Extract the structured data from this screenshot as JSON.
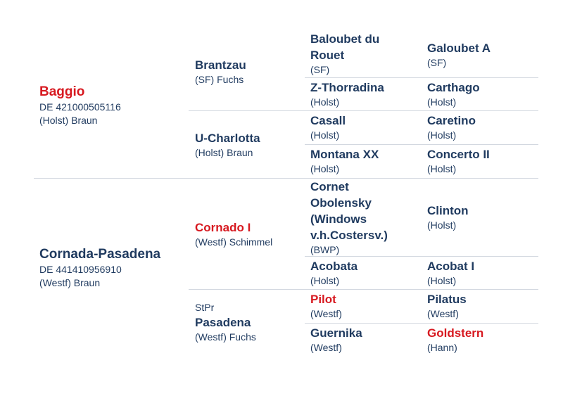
{
  "horse": {
    "sire": {
      "name": "Baggio",
      "reg": "DE 421000505116",
      "info": "(Holst) Braun",
      "highlight": true
    },
    "dam": {
      "name": "Cornada-Pasadena",
      "reg": "DE 441410956910",
      "info": "(Westf) Braun",
      "highlight": false
    }
  },
  "grandparents": [
    {
      "name": "Brantzau",
      "info": "(SF) Fuchs",
      "prefix": "",
      "highlight": false
    },
    {
      "name": "U-Charlotta",
      "info": "(Holst) Braun",
      "prefix": "",
      "highlight": false
    },
    {
      "name": "Cornado I",
      "info": "(Westf) Schimmel",
      "prefix": "",
      "highlight": true
    },
    {
      "name": "Pasadena",
      "info": "(Westf) Fuchs",
      "prefix": "StPr",
      "highlight": false
    }
  ],
  "great_grandparents": [
    {
      "name_lines": [
        "Baloubet du",
        "Rouet"
      ],
      "info": "(SF)",
      "highlight": false
    },
    {
      "name_lines": [
        "Z-Thorradina"
      ],
      "info": "(Holst)",
      "highlight": false
    },
    {
      "name_lines": [
        "Casall"
      ],
      "info": "(Holst)",
      "highlight": false
    },
    {
      "name_lines": [
        "Montana XX"
      ],
      "info": "(Holst)",
      "highlight": false
    },
    {
      "name_lines": [
        "Cornet",
        "Obolensky",
        "(Windows",
        "v.h.Costersv.)"
      ],
      "info": "(BWP)",
      "highlight": false
    },
    {
      "name_lines": [
        "Acobata"
      ],
      "info": "(Holst)",
      "highlight": false
    },
    {
      "name_lines": [
        "Pilot"
      ],
      "info": "(Westf)",
      "highlight": true
    },
    {
      "name_lines": [
        "Guernika"
      ],
      "info": "(Westf)",
      "highlight": false
    }
  ],
  "great_great_grandparents": [
    {
      "name": "Galoubet A",
      "info": "(SF)",
      "highlight": false
    },
    {
      "name": "Carthago",
      "info": "(Holst)",
      "highlight": false
    },
    {
      "name": "Caretino",
      "info": "(Holst)",
      "highlight": false
    },
    {
      "name": "Concerto II",
      "info": "(Holst)",
      "highlight": false
    },
    {
      "name": "Clinton",
      "info": "(Holst)",
      "highlight": false
    },
    {
      "name": "Acobat I",
      "info": "(Holst)",
      "highlight": false
    },
    {
      "name": "Pilatus",
      "info": "(Westf)",
      "highlight": false
    },
    {
      "name": "Goldstern",
      "info": "(Hann)",
      "highlight": true
    }
  ]
}
